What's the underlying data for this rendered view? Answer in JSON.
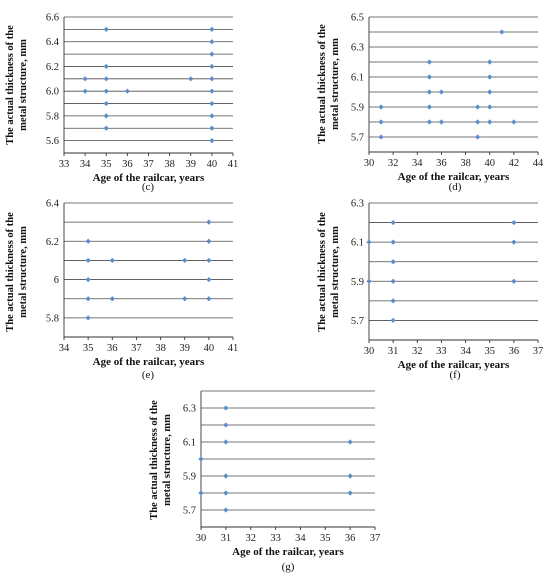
{
  "chart_data": [
    {
      "id": "c",
      "panel_label": "(c)",
      "type": "scatter",
      "xlabel": "Age of the railcar, years",
      "ylabel_lines": [
        "The actual thickness of the",
        "metal structure, mm"
      ],
      "xlim": [
        33,
        41
      ],
      "ylim": [
        5.5,
        6.6
      ],
      "x_ticks": [
        33,
        34,
        35,
        36,
        37,
        38,
        39,
        40,
        41
      ],
      "y_ticks": [
        5.6,
        5.8,
        6.0,
        6.2,
        6.4,
        6.6
      ],
      "y_tick_labels": [
        "5.6",
        "5.8",
        "6.0",
        "6.2",
        "6.4",
        "6.6"
      ],
      "grid_y": [
        5.6,
        5.7,
        5.8,
        5.9,
        6.0,
        6.1,
        6.2,
        6.3,
        6.4,
        6.5,
        6.6
      ],
      "points": [
        [
          34,
          6.1
        ],
        [
          34,
          6.0
        ],
        [
          35,
          6.5
        ],
        [
          35,
          6.2
        ],
        [
          35,
          6.1
        ],
        [
          35,
          6.0
        ],
        [
          35,
          5.9
        ],
        [
          35,
          5.8
        ],
        [
          35,
          5.7
        ],
        [
          36,
          6.0
        ],
        [
          39,
          6.1
        ],
        [
          40,
          6.5
        ],
        [
          40,
          6.4
        ],
        [
          40,
          6.3
        ],
        [
          40,
          6.2
        ],
        [
          40,
          6.1
        ],
        [
          40,
          6.0
        ],
        [
          40,
          5.9
        ],
        [
          40,
          5.8
        ],
        [
          40,
          5.7
        ],
        [
          40,
          5.6
        ]
      ]
    },
    {
      "id": "d",
      "panel_label": "(d)",
      "type": "scatter",
      "xlabel": "Age of the railcar, years",
      "ylabel_lines": [
        "The actual thickness of the",
        "metal structure, mm"
      ],
      "xlim": [
        30,
        44
      ],
      "ylim": [
        5.6,
        6.5
      ],
      "x_ticks": [
        30,
        32,
        34,
        36,
        38,
        40,
        42,
        44
      ],
      "y_ticks": [
        5.7,
        5.9,
        6.1,
        6.3,
        6.5
      ],
      "y_tick_labels": [
        "5.7",
        "5.9",
        "6.1",
        "6.3",
        "6.5"
      ],
      "grid_y": [
        5.7,
        5.8,
        5.9,
        6.0,
        6.1,
        6.2,
        6.3,
        6.4,
        6.5
      ],
      "points": [
        [
          31,
          5.9
        ],
        [
          31,
          5.8
        ],
        [
          31,
          5.7
        ],
        [
          35,
          6.2
        ],
        [
          35,
          6.1
        ],
        [
          35,
          6.0
        ],
        [
          35,
          5.9
        ],
        [
          35,
          5.8
        ],
        [
          36,
          6.0
        ],
        [
          36,
          5.8
        ],
        [
          39,
          5.9
        ],
        [
          39,
          5.8
        ],
        [
          39,
          5.7
        ],
        [
          40,
          6.2
        ],
        [
          40,
          6.1
        ],
        [
          40,
          6.0
        ],
        [
          40,
          5.9
        ],
        [
          40,
          5.8
        ],
        [
          41,
          6.4
        ],
        [
          42,
          5.8
        ]
      ]
    },
    {
      "id": "e",
      "panel_label": "(e)",
      "type": "scatter",
      "xlabel": "Age of the railcar, years",
      "ylabel_lines": [
        "The actual thickness of the",
        "metal structure, mm"
      ],
      "xlim": [
        34,
        41
      ],
      "ylim": [
        5.7,
        6.4
      ],
      "x_ticks": [
        34,
        35,
        36,
        37,
        38,
        39,
        40,
        41
      ],
      "y_ticks": [
        5.8,
        6.0,
        6.2,
        6.4
      ],
      "y_tick_labels": [
        "5.8",
        "6",
        "6.2",
        "6.4"
      ],
      "grid_y": [
        5.8,
        5.9,
        6.0,
        6.1,
        6.2,
        6.3,
        6.4
      ],
      "points": [
        [
          35,
          6.2
        ],
        [
          35,
          6.1
        ],
        [
          35,
          6.0
        ],
        [
          35,
          5.9
        ],
        [
          35,
          5.8
        ],
        [
          36,
          6.1
        ],
        [
          36,
          5.9
        ],
        [
          39,
          6.1
        ],
        [
          39,
          5.9
        ],
        [
          40,
          6.3
        ],
        [
          40,
          6.2
        ],
        [
          40,
          6.1
        ],
        [
          40,
          6.0
        ],
        [
          40,
          5.9
        ]
      ]
    },
    {
      "id": "f",
      "panel_label": "(f)",
      "type": "scatter",
      "xlabel": "Age of the railcar, years",
      "ylabel_lines": [
        "The actual thickness of the",
        "metal structure, mm"
      ],
      "xlim": [
        30,
        37
      ],
      "ylim": [
        5.6,
        6.3
      ],
      "x_ticks": [
        30,
        31,
        32,
        33,
        34,
        35,
        36,
        37
      ],
      "y_ticks": [
        5.7,
        5.9,
        6.1,
        6.3
      ],
      "y_tick_labels": [
        "5.7",
        "5.9",
        "6.1",
        "6.3"
      ],
      "grid_y": [
        5.7,
        5.8,
        5.9,
        6.0,
        6.1,
        6.2,
        6.3
      ],
      "points": [
        [
          30,
          6.1
        ],
        [
          30,
          5.9
        ],
        [
          31,
          6.2
        ],
        [
          31,
          6.1
        ],
        [
          31,
          6.0
        ],
        [
          31,
          5.9
        ],
        [
          31,
          5.8
        ],
        [
          31,
          5.7
        ],
        [
          36,
          6.2
        ],
        [
          36,
          6.1
        ],
        [
          36,
          5.9
        ]
      ]
    },
    {
      "id": "g",
      "panel_label": "(g)",
      "type": "scatter",
      "xlabel": "Age of the railcar, years",
      "ylabel_lines": [
        "The actual thickness of the",
        "metal structure, mm"
      ],
      "xlim": [
        30,
        37
      ],
      "ylim": [
        5.6,
        6.4
      ],
      "x_ticks": [
        30,
        31,
        32,
        33,
        34,
        35,
        36,
        37
      ],
      "y_ticks": [
        5.7,
        5.9,
        6.1,
        6.3
      ],
      "y_tick_labels": [
        "5.7",
        "5.9",
        "6.1",
        "6.3"
      ],
      "grid_y": [
        5.7,
        5.8,
        5.9,
        6.0,
        6.1,
        6.2,
        6.3,
        6.4
      ],
      "points": [
        [
          30,
          6.0
        ],
        [
          30,
          5.8
        ],
        [
          31,
          6.3
        ],
        [
          31,
          6.2
        ],
        [
          31,
          6.1
        ],
        [
          31,
          5.9
        ],
        [
          31,
          5.8
        ],
        [
          31,
          5.7
        ],
        [
          36,
          6.1
        ],
        [
          36,
          5.9
        ],
        [
          36,
          5.8
        ]
      ]
    }
  ],
  "colors": {
    "marker": "#5b8ec9",
    "grid": "#4a4a4a"
  }
}
